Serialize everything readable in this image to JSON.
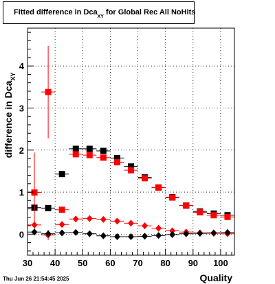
{
  "title": {
    "main": "Fitted difference in Dca",
    "subscript": "XY",
    "rest": " for Global Rec All NoHits"
  },
  "timestamp": "Thu Jun 26 21:54:45 2025",
  "chart_data": {
    "type": "scatter",
    "xlabel": "Quality",
    "ylabel": "difference in Dca",
    "ylabel_sub": "XY",
    "xlim": [
      30,
      105
    ],
    "ylim": [
      -0.5,
      4.9
    ],
    "xticks": [
      30,
      40,
      50,
      60,
      70,
      80,
      90,
      100
    ],
    "yticks": [
      0,
      1,
      2,
      3,
      4
    ],
    "grid": true,
    "series": [
      {
        "color": "#000000",
        "marker": "square",
        "points": [
          {
            "x": 32.5,
            "y": 0.63,
            "err": 0.05
          },
          {
            "x": 37.5,
            "y": 0.62,
            "err": 0.05
          },
          {
            "x": 42.5,
            "y": 1.43,
            "err": 0.04
          },
          {
            "x": 47.5,
            "y": 2.03,
            "err": 0.03
          },
          {
            "x": 52.5,
            "y": 2.03,
            "err": 0.03
          },
          {
            "x": 57.5,
            "y": 1.98,
            "err": 0.03
          },
          {
            "x": 62.5,
            "y": 1.81,
            "err": 0.03
          },
          {
            "x": 67.5,
            "y": 1.61,
            "err": 0.03
          },
          {
            "x": 72.5,
            "y": 1.35,
            "err": 0.03
          },
          {
            "x": 77.5,
            "y": 1.11,
            "err": 0.03
          },
          {
            "x": 82.5,
            "y": 0.88,
            "err": 0.03
          },
          {
            "x": 87.5,
            "y": 0.68,
            "err": 0.03
          },
          {
            "x": 92.5,
            "y": 0.54,
            "err": 0.03
          },
          {
            "x": 97.5,
            "y": 0.49,
            "err": 0.03
          },
          {
            "x": 102.5,
            "y": 0.45,
            "err": 0.03
          }
        ]
      },
      {
        "color": "#ff0000",
        "marker": "square",
        "points": [
          {
            "x": 32.5,
            "y": 0.99,
            "err": 0.95
          },
          {
            "x": 37.5,
            "y": 3.38,
            "err": 1.1
          },
          {
            "x": 42.5,
            "y": 0.58,
            "err": 0.04
          },
          {
            "x": 47.5,
            "y": 1.9,
            "err": 0.03
          },
          {
            "x": 52.5,
            "y": 1.88,
            "err": 0.03
          },
          {
            "x": 57.5,
            "y": 1.82,
            "err": 0.03
          },
          {
            "x": 62.5,
            "y": 1.71,
            "err": 0.03
          },
          {
            "x": 67.5,
            "y": 1.52,
            "err": 0.03
          },
          {
            "x": 72.5,
            "y": 1.33,
            "err": 0.03
          },
          {
            "x": 77.5,
            "y": 1.11,
            "err": 0.03
          },
          {
            "x": 82.5,
            "y": 0.87,
            "err": 0.03
          },
          {
            "x": 87.5,
            "y": 0.68,
            "err": 0.03
          },
          {
            "x": 92.5,
            "y": 0.52,
            "err": 0.03
          },
          {
            "x": 97.5,
            "y": 0.45,
            "err": 0.03
          },
          {
            "x": 102.5,
            "y": 0.41,
            "err": 0.03
          }
        ]
      },
      {
        "color": "#ff0000",
        "marker": "diamond",
        "points": [
          {
            "x": 32.5,
            "y": 0.22,
            "err": 0.12
          },
          {
            "x": 37.5,
            "y": -0.02,
            "err": 0.12
          },
          {
            "x": 42.5,
            "y": 0.23,
            "err": 0.02
          },
          {
            "x": 47.5,
            "y": 0.36,
            "err": 0.02
          },
          {
            "x": 52.5,
            "y": 0.37,
            "err": 0.02
          },
          {
            "x": 57.5,
            "y": 0.35,
            "err": 0.02
          },
          {
            "x": 62.5,
            "y": 0.31,
            "err": 0.02
          },
          {
            "x": 67.5,
            "y": 0.26,
            "err": 0.02
          },
          {
            "x": 72.5,
            "y": 0.2,
            "err": 0.02
          },
          {
            "x": 77.5,
            "y": 0.14,
            "err": 0.02
          },
          {
            "x": 82.5,
            "y": 0.08,
            "err": 0.02
          },
          {
            "x": 87.5,
            "y": 0.05,
            "err": 0.02
          },
          {
            "x": 92.5,
            "y": 0.03,
            "err": 0.02
          },
          {
            "x": 97.5,
            "y": 0.02,
            "err": 0.02
          },
          {
            "x": 102.5,
            "y": 0.01,
            "err": 0.02
          }
        ]
      },
      {
        "color": "#000000",
        "marker": "diamond",
        "points": [
          {
            "x": 32.5,
            "y": 0.05,
            "err": 0.04
          },
          {
            "x": 37.5,
            "y": 0.01,
            "err": 0.04
          },
          {
            "x": 42.5,
            "y": 0.03,
            "err": 0.02
          },
          {
            "x": 47.5,
            "y": 0.04,
            "err": 0.02
          },
          {
            "x": 52.5,
            "y": 0.01,
            "err": 0.02
          },
          {
            "x": 57.5,
            "y": -0.04,
            "err": 0.02
          },
          {
            "x": 62.5,
            "y": -0.06,
            "err": 0.02
          },
          {
            "x": 67.5,
            "y": -0.06,
            "err": 0.02
          },
          {
            "x": 72.5,
            "y": -0.05,
            "err": 0.02
          },
          {
            "x": 77.5,
            "y": -0.03,
            "err": 0.02
          },
          {
            "x": 82.5,
            "y": -0.01,
            "err": 0.02
          },
          {
            "x": 87.5,
            "y": 0.01,
            "err": 0.02
          },
          {
            "x": 92.5,
            "y": 0.02,
            "err": 0.02
          },
          {
            "x": 97.5,
            "y": 0.03,
            "err": 0.02
          },
          {
            "x": 102.5,
            "y": 0.04,
            "err": 0.02
          }
        ]
      }
    ]
  }
}
